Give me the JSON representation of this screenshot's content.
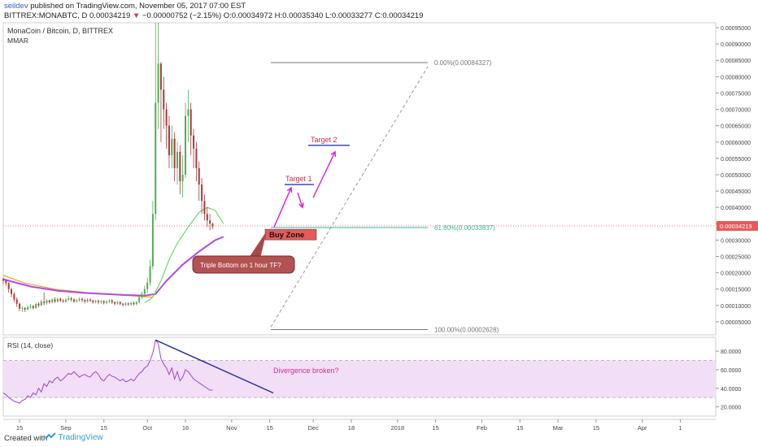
{
  "header": {
    "username": "seildev",
    "published": "published on TradingView.com, November 05, 2017 07:00 EST",
    "symbol": "BITTREX:MONABTC, D",
    "last": "0.00034219",
    "arrow": "▼",
    "change": "−0.00000752 (−2.15%)",
    "ohlc": "O:0.00034972 H:0.00035340 L:0.00033277 C:0.00034219"
  },
  "footer": {
    "created": "Created with",
    "brand": "TradingView",
    "logo_icon": "tradingview-logo-icon"
  },
  "colors": {
    "up": "#4caf50",
    "down": "#a83b3b",
    "ma_purple": "#b04ce0",
    "ma_green": "#6bd86b",
    "ma_orange": "#f0a030",
    "rsi": "#9c46d0",
    "rsi_band": "#f2dff7",
    "annot": "#e0249a",
    "target": "#c9303e",
    "arrow": "#d51ee0",
    "fib_gray": "#777777",
    "fib_green": "#3db39a",
    "price_tag": "#e85a5a",
    "divergence": "#1e2a96"
  },
  "chart_data": [
    {
      "type": "candlestick",
      "title": "MonaCoin / Bitcoin, D, BITTREX",
      "indicator_label": "MMAR",
      "y_ticks": [
        5e-05,
        0.0001,
        0.00015,
        0.0002,
        0.00025,
        0.0003,
        0.00035,
        0.0004,
        0.00045,
        0.0005,
        0.00055,
        0.0006,
        0.00065,
        0.0007,
        0.00075,
        0.0008,
        0.00085,
        0.0009,
        0.00095
      ],
      "y_tick_labels": [
        "0.00005000",
        "0.00010000",
        "0.00015000",
        "0.00020000",
        "0.00025000",
        "0.00030000",
        "0.00035000",
        "0.00040000",
        "0.00045000",
        "0.00050000",
        "0.00055000",
        "0.00060000",
        "0.00065000",
        "0.00070000",
        "0.00075000",
        "0.00080000",
        "0.00085000",
        "0.00090000",
        "0.00095000"
      ],
      "ylim": [
        1e-05,
        0.000965
      ],
      "x_range_days": [
        0,
        262
      ],
      "x_start_date": "2017-08-09",
      "x_ticks": [
        {
          "day": 6,
          "label": "15"
        },
        {
          "day": 23,
          "label": "Sep"
        },
        {
          "day": 37,
          "label": "15"
        },
        {
          "day": 53,
          "label": "Oct"
        },
        {
          "day": 67,
          "label": "16"
        },
        {
          "day": 84,
          "label": "Nov"
        },
        {
          "day": 98,
          "label": "15"
        },
        {
          "day": 114,
          "label": "Dec"
        },
        {
          "day": 128,
          "label": "18"
        },
        {
          "day": 145,
          "label": "2018"
        },
        {
          "day": 159,
          "label": "15"
        },
        {
          "day": 176,
          "label": "Feb"
        },
        {
          "day": 190,
          "label": "15"
        },
        {
          "day": 204,
          "label": "Mar"
        },
        {
          "day": 218,
          "label": "15"
        },
        {
          "day": 235,
          "label": "Apr"
        },
        {
          "day": 249,
          "label": "1"
        }
      ],
      "candles": [
        [
          0.00018,
          0.000176,
          0.000185,
          0.000165
        ],
        [
          0.000176,
          0.000168,
          0.00018,
          0.00016
        ],
        [
          0.000168,
          0.00015,
          0.000172,
          0.00014
        ],
        [
          0.00015,
          0.000135,
          0.000155,
          0.000125
        ],
        [
          0.000135,
          0.000118,
          0.00014,
          0.00011
        ],
        [
          0.000118,
          0.000105,
          0.000125,
          9.5e-05
        ],
        [
          0.000105,
          9e-05,
          0.00011,
          8.2e-05
        ],
        [
          9e-05,
          9.2e-05,
          9.8e-05,
          8e-05
        ],
        [
          9.2e-05,
          8.8e-05,
          9.5e-05,
          8e-05
        ],
        [
          8.8e-05,
          9.5e-05,
          0.0001,
          8.5e-05
        ],
        [
          9.5e-05,
          9.8e-05,
          0.000105,
          9e-05
        ],
        [
          9.8e-05,
          9.2e-05,
          0.000102,
          8.8e-05
        ],
        [
          9.2e-05,
          0.000105,
          0.000108,
          9e-05
        ],
        [
          0.000105,
          0.0001,
          0.00011,
          9.5e-05
        ],
        [
          0.0001,
          0.000112,
          0.000118,
          9.8e-05
        ],
        [
          0.000112,
          0.000108,
          0.00014,
          0.0001
        ],
        [
          0.000108,
          0.000115,
          0.00012,
          0.000102
        ],
        [
          0.000115,
          0.00011,
          0.000118,
          0.000105
        ],
        [
          0.00011,
          0.000118,
          0.000122,
          0.000106
        ],
        [
          0.000118,
          0.000112,
          0.000125,
          0.000108
        ],
        [
          0.000112,
          0.00012,
          0.000125,
          0.000108
        ],
        [
          0.00012,
          0.000115,
          0.000125,
          0.00011
        ],
        [
          0.000115,
          0.000112,
          0.00012,
          0.000108
        ],
        [
          0.000112,
          0.000118,
          0.000122,
          0.000108
        ],
        [
          0.000118,
          0.000122,
          0.00013,
          0.000114
        ],
        [
          0.000122,
          0.000118,
          0.000126,
          0.000112
        ],
        [
          0.000118,
          0.000112,
          0.000122,
          0.000108
        ],
        [
          0.000112,
          0.000116,
          0.00012,
          0.000108
        ],
        [
          0.000116,
          0.00012,
          0.000125,
          0.000112
        ],
        [
          0.00012,
          0.000116,
          0.000124,
          0.00011
        ],
        [
          0.000116,
          0.000112,
          0.00012,
          0.000106
        ],
        [
          0.000112,
          0.000118,
          0.000122,
          0.000108
        ],
        [
          0.000118,
          0.000115,
          0.000123,
          0.00011
        ],
        [
          0.000115,
          0.00011,
          0.000118,
          0.000105
        ],
        [
          0.00011,
          0.000114,
          0.000118,
          0.000106
        ],
        [
          0.000114,
          0.00011,
          0.000118,
          0.000104
        ],
        [
          0.00011,
          0.000113,
          0.000117,
          0.000105
        ],
        [
          0.000113,
          0.000108,
          0.000116,
          0.000103
        ],
        [
          0.000108,
          0.000112,
          0.000116,
          0.000104
        ],
        [
          0.000112,
          0.000115,
          0.000119,
          0.000107
        ],
        [
          0.000115,
          0.00011,
          0.000119,
          0.000105
        ],
        [
          0.00011,
          0.000106,
          0.000113,
          0.0001
        ],
        [
          0.000106,
          0.00011,
          0.000114,
          0.000102
        ],
        [
          0.00011,
          0.000105,
          0.000113,
          0.0001
        ],
        [
          0.000105,
          0.000102,
          0.000108,
          9.7e-05
        ],
        [
          0.000102,
          0.000106,
          0.00011,
          9.8e-05
        ],
        [
          0.000106,
          0.000103,
          0.00011,
          9.8e-05
        ],
        [
          0.000103,
          0.000108,
          0.000112,
          9.9e-05
        ],
        [
          0.000108,
          0.000104,
          0.000112,
          0.0001
        ],
        [
          0.000104,
          0.00011,
          0.000114,
          0.0001
        ],
        [
          0.00011,
          0.000125,
          0.00013,
          0.000106
        ],
        [
          0.000125,
          0.000135,
          0.000142,
          0.00012
        ],
        [
          0.000135,
          0.00015,
          0.00016,
          0.00013
        ],
        [
          0.00015,
          0.00017,
          0.000185,
          0.00014
        ],
        [
          0.00017,
          0.00022,
          0.00024,
          0.00016
        ],
        [
          0.00022,
          0.00038,
          0.00042,
          0.00021
        ],
        [
          0.00038,
          0.00072,
          0.00098,
          0.00036
        ],
        [
          0.00072,
          0.00084,
          0.00098,
          0.00064
        ],
        [
          0.00084,
          0.00076,
          0.000845,
          0.0006
        ],
        [
          0.00076,
          0.0007,
          0.0008,
          0.00064
        ],
        [
          0.0007,
          0.00065,
          0.00072,
          0.00058
        ],
        [
          0.00065,
          0.00056,
          0.00068,
          0.00052
        ],
        [
          0.00056,
          0.00061,
          0.00065,
          0.00052
        ],
        [
          0.00061,
          0.00052,
          0.00063,
          0.00048
        ],
        [
          0.00052,
          0.00057,
          0.0006,
          0.00047
        ],
        [
          0.00057,
          0.00048,
          0.00059,
          0.00044
        ],
        [
          0.00048,
          0.0005,
          0.00056,
          0.00043
        ],
        [
          0.0005,
          0.00068,
          0.00072,
          0.00049
        ],
        [
          0.00068,
          0.0007,
          0.00076,
          0.0006
        ],
        [
          0.0007,
          0.00062,
          0.00072,
          0.00056
        ],
        [
          0.00062,
          0.00058,
          0.00064,
          0.00052
        ],
        [
          0.00058,
          0.00052,
          0.0006,
          0.00048
        ],
        [
          0.00052,
          0.00047,
          0.00054,
          0.00042
        ],
        [
          0.00047,
          0.00042,
          0.00049,
          0.00038
        ],
        [
          0.00042,
          0.00038,
          0.00044,
          0.00036
        ],
        [
          0.00038,
          0.00036,
          0.0004,
          0.00034
        ],
        [
          0.00036,
          0.00035,
          0.00038,
          0.00033
        ],
        [
          0.00035,
          0.000342,
          0.000353,
          0.000333
        ]
      ],
      "ma_purple": [
        [
          0,
          0.00018
        ],
        [
          10,
          0.000158
        ],
        [
          20,
          0.000145
        ],
        [
          30,
          0.000138
        ],
        [
          45,
          0.000132
        ],
        [
          52,
          0.00013
        ],
        [
          56,
          0.000135
        ],
        [
          60,
          0.000175
        ],
        [
          66,
          0.000225
        ],
        [
          72,
          0.000265
        ],
        [
          78,
          0.0003
        ],
        [
          81,
          0.00031
        ]
      ],
      "ma_orange": [
        [
          0,
          0.000192
        ],
        [
          8,
          0.000168
        ],
        [
          20,
          0.000148
        ],
        [
          35,
          0.000136
        ],
        [
          50,
          0.000128
        ],
        [
          55,
          0.000125
        ]
      ],
      "ma_green": [
        [
          52,
          0.000108
        ],
        [
          55,
          0.000125
        ],
        [
          58,
          0.000175
        ],
        [
          61,
          0.00024
        ],
        [
          64,
          0.00029
        ],
        [
          68,
          0.00034
        ],
        [
          72,
          0.000385
        ],
        [
          75,
          0.0004
        ],
        [
          78,
          0.00039
        ],
        [
          81,
          0.00035
        ]
      ]
    },
    {
      "type": "line",
      "title": "RSI (14, close)",
      "y_ticks": [
        20,
        40,
        60,
        80
      ],
      "y_tick_labels": [
        "20.0000",
        "40.0000",
        "60.0000",
        "80.0000"
      ],
      "ylim": [
        10,
        95
      ],
      "band": [
        30,
        70
      ],
      "values": [
        35,
        33,
        30,
        28,
        26,
        25,
        24,
        27,
        28,
        32,
        30,
        35,
        33,
        40,
        36,
        45,
        42,
        48,
        46,
        50,
        52,
        48,
        50,
        53,
        56,
        55,
        58,
        55,
        52,
        54,
        55,
        53,
        52,
        56,
        58,
        55,
        50,
        48,
        52,
        55,
        53,
        52,
        50,
        48,
        50,
        47,
        48,
        50,
        48,
        52,
        56,
        58,
        62,
        64,
        70,
        78,
        92,
        88,
        72,
        66,
        62,
        55,
        62,
        50,
        58,
        48,
        52,
        60,
        58,
        54,
        50,
        48,
        46,
        44,
        42,
        40,
        38,
        38
      ]
    },
    {
      "type": "annotations",
      "fib_levels": [
        {
          "label": "0.00%(0.00084327)",
          "price": 0.00084327
        },
        {
          "label": "61.80%(0.00033837)",
          "price": 0.00033837
        },
        {
          "label": "100.00%(0.00002628)",
          "price": 2.628e-05
        }
      ],
      "current_price_label": "0.00034219",
      "target1": {
        "label": "Target 1",
        "price": 0.00047
      },
      "target2": {
        "label": "Target 2",
        "price": 0.00059
      },
      "buy_zone": "Buy Zone",
      "callout": "Triple Bottom on 1 hour TF?",
      "divergence": "Divergence broken?"
    }
  ]
}
